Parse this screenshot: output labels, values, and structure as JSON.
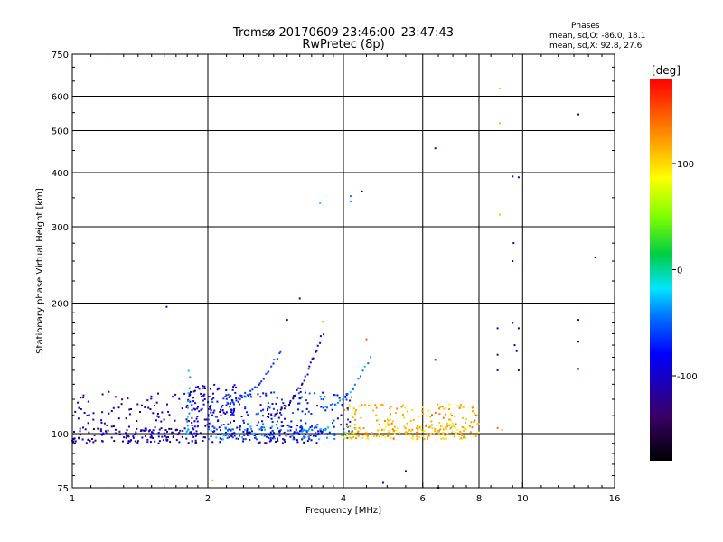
{
  "chart_data": {
    "type": "scatter",
    "title": "Tromsø 20170609 23:46:00–23:47:43",
    "subtitle": "RwPretec (8p)",
    "xlabel": "Frequency [MHz]",
    "ylabel": "Stationary phase Virtual Height [km]",
    "x_scale": "log",
    "y_scale": "log",
    "xlim": [
      1,
      16
    ],
    "ylim": [
      75,
      750
    ],
    "x_ticks": [
      1,
      2,
      4,
      6,
      8,
      10,
      16
    ],
    "x_tick_labels": [
      "1",
      "2",
      "4",
      "6",
      "8",
      "10",
      "16"
    ],
    "y_ticks": [
      75,
      100,
      200,
      300,
      400,
      500,
      600,
      750
    ],
    "y_tick_labels": [
      "75",
      "100",
      "200",
      "300",
      "400",
      "500",
      "600",
      "750"
    ],
    "grid": true,
    "phase_stats": {
      "heading": "Phases",
      "line_o": "mean, sd,O: -86.0, 18.1",
      "line_x": "mean, sd,X:  92.8, 27.6"
    },
    "colorbar": {
      "label": "[deg]",
      "range": [
        -180,
        180
      ],
      "ticks": [
        100,
        0,
        -100
      ],
      "tick_labels": [
        "100",
        "0",
        "-100"
      ]
    },
    "isolated_points": [
      {
        "f": 1.62,
        "h": 196,
        "phase": -105
      },
      {
        "f": 3.2,
        "h": 205,
        "phase": -150
      },
      {
        "f": 3.0,
        "h": 183,
        "phase": -110
      },
      {
        "f": 3.55,
        "h": 340,
        "phase": -20
      },
      {
        "f": 4.15,
        "h": 343,
        "phase": -30
      },
      {
        "f": 4.15,
        "h": 353,
        "phase": -40
      },
      {
        "f": 4.4,
        "h": 362,
        "phase": -110
      },
      {
        "f": 6.4,
        "h": 455,
        "phase": -110
      },
      {
        "f": 8.9,
        "h": 625,
        "phase": 110
      },
      {
        "f": 8.9,
        "h": 520,
        "phase": 115
      },
      {
        "f": 8.9,
        "h": 320,
        "phase": 110
      },
      {
        "f": 9.5,
        "h": 392,
        "phase": -110
      },
      {
        "f": 9.8,
        "h": 390,
        "phase": -110
      },
      {
        "f": 9.55,
        "h": 275,
        "phase": -110
      },
      {
        "f": 9.5,
        "h": 250,
        "phase": -110
      },
      {
        "f": 13.3,
        "h": 545,
        "phase": -110
      },
      {
        "f": 14.5,
        "h": 255,
        "phase": -110
      },
      {
        "f": 13.3,
        "h": 183,
        "phase": -110
      },
      {
        "f": 13.3,
        "h": 163,
        "phase": -110
      },
      {
        "f": 13.3,
        "h": 141,
        "phase": -110
      },
      {
        "f": 8.8,
        "h": 175,
        "phase": -110
      },
      {
        "f": 9.5,
        "h": 180,
        "phase": -110
      },
      {
        "f": 9.8,
        "h": 175,
        "phase": -110
      },
      {
        "f": 9.6,
        "h": 160,
        "phase": -110
      },
      {
        "f": 9.7,
        "h": 155,
        "phase": -110
      },
      {
        "f": 8.8,
        "h": 152,
        "phase": -110
      },
      {
        "f": 9.8,
        "h": 140,
        "phase": -110
      },
      {
        "f": 8.8,
        "h": 140,
        "phase": -110
      },
      {
        "f": 6.4,
        "h": 148,
        "phase": -90
      },
      {
        "f": 3.6,
        "h": 181,
        "phase": 120
      },
      {
        "f": 4.5,
        "h": 165,
        "phase": 150
      },
      {
        "f": 2.05,
        "h": 78,
        "phase": 110
      },
      {
        "f": 5.5,
        "h": 82,
        "phase": -110
      },
      {
        "f": 4.9,
        "h": 77,
        "phase": -110
      },
      {
        "f": 6.5,
        "h": 75,
        "phase": -110
      },
      {
        "f": 8.8,
        "h": 103,
        "phase": 140
      },
      {
        "f": 9.0,
        "h": 102,
        "phase": 130
      }
    ],
    "clusters": [
      {
        "name": "E-layer O-mode (blue band)",
        "f_range": [
          1.0,
          3.6
        ],
        "h_range": [
          95,
          103
        ],
        "phase_center": -105,
        "n": 240
      },
      {
        "name": "Blue scatter 1-2 MHz",
        "f_range": [
          1.0,
          2.1
        ],
        "h_range": [
          96,
          125
        ],
        "phase_center": -110,
        "n": 120
      },
      {
        "name": "Sporadic trace ~1.8-2.3 MHz",
        "f_range": [
          1.8,
          2.4
        ],
        "h_range": [
          103,
          130
        ],
        "phase_center": -90,
        "n": 100
      },
      {
        "name": "Cyan band 2-4 MHz",
        "f_range": [
          2.0,
          4.2
        ],
        "h_range": [
          97,
          104
        ],
        "phase_center": -40,
        "n": 110
      },
      {
        "name": "Yellow/orange X-mode band 4-8 MHz",
        "f_range": [
          4.0,
          8.0
        ],
        "h_range": [
          97,
          104
        ],
        "phase_center": 110,
        "n": 160
      },
      {
        "name": "Orange patch 4-8 MHz",
        "f_range": [
          4.0,
          8.0
        ],
        "h_range": [
          104,
          117
        ],
        "phase_center": 115,
        "n": 110
      },
      {
        "name": "Blue/cyan scatter 2-4 MHz",
        "f_range": [
          2.0,
          4.2
        ],
        "h_range": [
          103,
          125
        ],
        "phase_center": -70,
        "n": 140
      }
    ],
    "traces": [
      {
        "name": "F trace 1",
        "f_range": [
          2.2,
          2.9
        ],
        "h_range": [
          118,
          155
        ],
        "phase_center": -60,
        "n": 30
      },
      {
        "name": "F trace 2",
        "f_range": [
          2.7,
          3.6
        ],
        "h_range": [
          110,
          170
        ],
        "phase_center": -110,
        "n": 40
      },
      {
        "name": "F trace 3",
        "f_range": [
          3.6,
          4.6
        ],
        "h_range": [
          115,
          150
        ],
        "phase_center": -40,
        "n": 20
      },
      {
        "name": "Vertical streak 1.8",
        "f_range": [
          1.8,
          1.82
        ],
        "h_range": [
          100,
          140
        ],
        "phase_center": -30,
        "n": 15
      }
    ]
  }
}
